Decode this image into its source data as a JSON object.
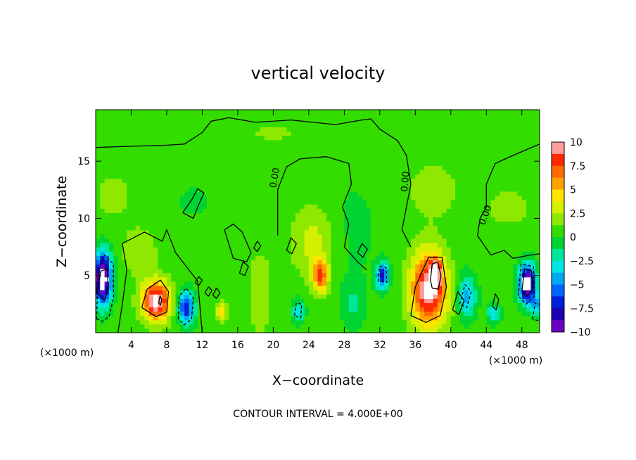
{
  "chart_data": {
    "type": "heatmap",
    "title": "vertical velocity",
    "xlabel": "X−coordinate",
    "ylabel": "Z−coordinate",
    "x_units_left": "(×1000 m)",
    "x_units_right": "(×1000 m)",
    "footer": "CONTOUR INTERVAL = 4.000E+00",
    "xlim": [
      0,
      50
    ],
    "ylim": [
      0,
      19.5
    ],
    "x_ticks": [
      4,
      8,
      12,
      16,
      20,
      24,
      28,
      32,
      36,
      40,
      44,
      48
    ],
    "x_tick_labels": [
      "4",
      "8",
      "12",
      "16",
      "20",
      "24",
      "28",
      "32",
      "36",
      "40",
      "44",
      "48"
    ],
    "y_ticks": [
      5,
      10,
      15
    ],
    "y_tick_labels": [
      "5",
      "10",
      "15"
    ],
    "contour_labels": [
      {
        "text": "0.00",
        "x": 20.5,
        "z": 13.5,
        "angle": -80
      },
      {
        "text": "0.00",
        "x": 35.2,
        "z": 13.2,
        "angle": -85
      },
      {
        "text": "0.00",
        "x": 44.2,
        "z": 10.2,
        "angle": -70
      }
    ],
    "colorbar": {
      "range": [
        -10,
        10
      ],
      "tick_labels": [
        "10",
        "7.5",
        "5",
        "2.5",
        "0",
        "−2.5",
        "−5",
        "−7.5",
        "−10"
      ],
      "tick_values": [
        10,
        7.5,
        5,
        2.5,
        0,
        -2.5,
        -5,
        -7.5,
        -10
      ],
      "colors": [
        "#ff9c9c",
        "#ff2a00",
        "#ff6a00",
        "#ffa200",
        "#ffe400",
        "#d4f000",
        "#8ee800",
        "#33dd00",
        "#00d433",
        "#00e69c",
        "#00e6e6",
        "#00a9f0",
        "#0064ff",
        "#0020d8",
        "#2000b0",
        "#6a00c0"
      ]
    },
    "background_value": 0.5,
    "features": [
      {
        "x": 0.8,
        "z": 4.8,
        "sx": 1.0,
        "sz": 2.2,
        "value": -13
      },
      {
        "x": 6.8,
        "z": 2.8,
        "sx": 1.6,
        "sz": 1.7,
        "value": 10
      },
      {
        "x": 10.2,
        "z": 2.2,
        "sx": 0.9,
        "sz": 1.4,
        "value": -8
      },
      {
        "x": 14.2,
        "z": 1.8,
        "sx": 0.6,
        "sz": 0.8,
        "value": 4
      },
      {
        "x": 18.5,
        "z": 3.5,
        "sx": 1.2,
        "sz": 3.5,
        "value": 2
      },
      {
        "x": 22.8,
        "z": 1.9,
        "sx": 0.7,
        "sz": 1.0,
        "value": -4
      },
      {
        "x": 25.3,
        "z": 5.0,
        "sx": 0.9,
        "sz": 1.4,
        "value": 7
      },
      {
        "x": 24.5,
        "z": 8.0,
        "sx": 2.5,
        "sz": 3.0,
        "value": 2.5
      },
      {
        "x": 29.0,
        "z": 2.5,
        "sx": 1.3,
        "sz": 2.0,
        "value": -2
      },
      {
        "x": 32.3,
        "z": 5.0,
        "sx": 0.7,
        "sz": 1.1,
        "value": -8
      },
      {
        "x": 37.5,
        "z": 3.8,
        "sx": 2.0,
        "sz": 3.2,
        "value": 10
      },
      {
        "x": 38.3,
        "z": 5.2,
        "sx": 0.6,
        "sz": 1.3,
        "value": 6
      },
      {
        "x": 41.8,
        "z": 3.2,
        "sx": 1.0,
        "sz": 1.8,
        "value": -5
      },
      {
        "x": 44.8,
        "z": 1.7,
        "sx": 0.7,
        "sz": 0.8,
        "value": -4
      },
      {
        "x": 48.6,
        "z": 4.3,
        "sx": 0.9,
        "sz": 1.6,
        "value": -13
      },
      {
        "x": 49.6,
        "z": 2.5,
        "sx": 0.5,
        "sz": 0.9,
        "value": -5
      },
      {
        "x": 5.0,
        "z": 7.0,
        "sx": 1.8,
        "sz": 2.0,
        "value": 2
      },
      {
        "x": 11.0,
        "z": 11.5,
        "sx": 1.5,
        "sz": 1.2,
        "value": -1.2
      },
      {
        "x": 29.0,
        "z": 9.0,
        "sx": 3.0,
        "sz": 5.0,
        "value": -0.8
      },
      {
        "x": 38.0,
        "z": 12.5,
        "sx": 3.0,
        "sz": 2.5,
        "value": 1.5
      },
      {
        "x": 46.5,
        "z": 11.0,
        "sx": 3.0,
        "sz": 2.0,
        "value": 1.2
      },
      {
        "x": 2.0,
        "z": 12.0,
        "sx": 3.0,
        "sz": 3.0,
        "value": 1.0
      },
      {
        "x": 20.0,
        "z": 17.5,
        "sx": 8.0,
        "sz": 2.0,
        "value": 0.8
      }
    ],
    "contours": [
      {
        "style": "solid",
        "points": [
          [
            0,
            16.2
          ],
          [
            4,
            16.3
          ],
          [
            8,
            16.4
          ],
          [
            10,
            16.5
          ],
          [
            12,
            17.5
          ],
          [
            13,
            18.5
          ],
          [
            15,
            18.8
          ],
          [
            18,
            18.4
          ],
          [
            22,
            18.6
          ],
          [
            27,
            18.2
          ],
          [
            30,
            18.6
          ],
          [
            31,
            18.7
          ],
          [
            32,
            17.8
          ],
          [
            34,
            16.8
          ],
          [
            35,
            15.5
          ],
          [
            35.5,
            13.0
          ],
          [
            35.0,
            11.0
          ],
          [
            34.5,
            9.0
          ],
          [
            35.5,
            7.5
          ]
        ]
      },
      {
        "style": "solid",
        "points": [
          [
            50,
            16.5
          ],
          [
            47,
            15.5
          ],
          [
            45,
            14.8
          ],
          [
            44,
            13.0
          ],
          [
            44,
            11.0
          ],
          [
            43.3,
            10.0
          ],
          [
            43,
            8.5
          ],
          [
            44.5,
            6.8
          ],
          [
            46,
            7.2
          ],
          [
            47,
            6.5
          ],
          [
            49,
            6.8
          ],
          [
            50,
            6.9
          ]
        ]
      },
      {
        "style": "solid",
        "points": [
          [
            20.5,
            8.5
          ],
          [
            20.5,
            12.5
          ],
          [
            21.5,
            14.5
          ],
          [
            23,
            15.2
          ],
          [
            26,
            15.4
          ],
          [
            28.5,
            14.8
          ],
          [
            28.8,
            13.0
          ],
          [
            27.8,
            11.0
          ],
          [
            28.5,
            9.5
          ],
          [
            28.0,
            7.5
          ],
          [
            29.5,
            6.2
          ],
          [
            30.5,
            5.5
          ]
        ]
      },
      {
        "style": "solid",
        "points": [
          [
            2.5,
            0
          ],
          [
            3.0,
            2.5
          ],
          [
            3.5,
            5.5
          ],
          [
            3.0,
            7.8
          ],
          [
            5.5,
            8.8
          ],
          [
            7.5,
            8.0
          ],
          [
            8.0,
            9.0
          ],
          [
            9.0,
            7.0
          ],
          [
            10.5,
            5.5
          ],
          [
            11.5,
            4.5
          ],
          [
            12.0,
            0
          ]
        ]
      },
      {
        "style": "solid",
        "points": [
          [
            9.8,
            10.5
          ],
          [
            10.8,
            11.6
          ],
          [
            11.5,
            12.6
          ],
          [
            12.2,
            12.2
          ],
          [
            11.6,
            11.2
          ],
          [
            11.0,
            10.0
          ],
          [
            9.8,
            10.5
          ]
        ]
      },
      {
        "style": "solid",
        "points": [
          [
            14.5,
            9.0
          ],
          [
            15.5,
            9.5
          ],
          [
            16.5,
            8.8
          ],
          [
            17.5,
            7.0
          ],
          [
            17.0,
            6.2
          ],
          [
            15.5,
            6.5
          ],
          [
            14.5,
            9.0
          ]
        ]
      },
      {
        "style": "solid",
        "points": [
          [
            5.2,
            2.2
          ],
          [
            5.8,
            3.8
          ],
          [
            7.3,
            4.6
          ],
          [
            8.2,
            3.6
          ],
          [
            8.0,
            1.8
          ],
          [
            6.8,
            1.4
          ],
          [
            5.2,
            2.2
          ]
        ]
      },
      {
        "style": "solid",
        "points": [
          [
            35.5,
            1.5
          ],
          [
            36.0,
            4.0
          ],
          [
            37.5,
            6.6
          ],
          [
            39.0,
            6.6
          ],
          [
            39.5,
            4.0
          ],
          [
            38.8,
            1.5
          ],
          [
            37.2,
            0.9
          ],
          [
            35.5,
            1.5
          ]
        ]
      },
      {
        "style": "solid",
        "points": [
          [
            37.7,
            4.6
          ],
          [
            37.9,
            6.0
          ],
          [
            38.5,
            6.2
          ],
          [
            38.9,
            5.0
          ],
          [
            38.6,
            3.8
          ],
          [
            37.9,
            3.9
          ],
          [
            37.7,
            4.6
          ]
        ]
      },
      {
        "style": "solid",
        "points": [
          [
            7.1,
            2.6
          ],
          [
            7.25,
            3.2
          ],
          [
            7.45,
            2.9
          ],
          [
            7.3,
            2.4
          ],
          [
            7.1,
            2.6
          ]
        ]
      },
      {
        "style": "solid",
        "points": [
          [
            0.1,
            3.5
          ],
          [
            0.6,
            5.4
          ],
          [
            1.3,
            5.6
          ],
          [
            1.4,
            4.0
          ],
          [
            1.0,
            2.8
          ],
          [
            0.1,
            3.5
          ]
        ]
      },
      {
        "style": "solid",
        "points": [
          [
            48.0,
            3.6
          ],
          [
            48.3,
            5.6
          ],
          [
            49.1,
            5.4
          ],
          [
            49.2,
            3.8
          ],
          [
            48.6,
            3.2
          ],
          [
            48.0,
            3.6
          ]
        ]
      },
      {
        "style": "solid",
        "points": [
          [
            16.2,
            5.2
          ],
          [
            16.6,
            6.2
          ],
          [
            17.2,
            5.8
          ],
          [
            16.8,
            5.0
          ],
          [
            16.2,
            5.2
          ]
        ]
      },
      {
        "style": "solid",
        "points": [
          [
            21.5,
            7.2
          ],
          [
            22.0,
            8.3
          ],
          [
            22.6,
            7.8
          ],
          [
            22.1,
            6.9
          ],
          [
            21.5,
            7.2
          ]
        ]
      },
      {
        "style": "solid",
        "points": [
          [
            29.5,
            7.0
          ],
          [
            30.0,
            7.8
          ],
          [
            30.6,
            7.3
          ],
          [
            30.1,
            6.6
          ],
          [
            29.5,
            7.0
          ]
        ]
      },
      {
        "style": "solid",
        "points": [
          [
            11.2,
            4.4
          ],
          [
            11.6,
            4.9
          ],
          [
            12.0,
            4.6
          ],
          [
            11.6,
            4.1
          ],
          [
            11.2,
            4.4
          ]
        ]
      },
      {
        "style": "solid",
        "points": [
          [
            12.3,
            3.5
          ],
          [
            12.7,
            4.0
          ],
          [
            13.1,
            3.7
          ],
          [
            12.7,
            3.2
          ],
          [
            12.3,
            3.5
          ]
        ]
      },
      {
        "style": "solid",
        "points": [
          [
            13.2,
            3.3
          ],
          [
            13.6,
            3.9
          ],
          [
            14.0,
            3.5
          ],
          [
            13.6,
            3.0
          ],
          [
            13.2,
            3.3
          ]
        ]
      },
      {
        "style": "solid",
        "points": [
          [
            17.8,
            7.4
          ],
          [
            18.2,
            8.0
          ],
          [
            18.6,
            7.6
          ],
          [
            18.2,
            7.1
          ],
          [
            17.8,
            7.4
          ]
        ]
      },
      {
        "style": "solid",
        "points": [
          [
            40.2,
            2.0
          ],
          [
            40.8,
            3.6
          ],
          [
            41.5,
            2.8
          ],
          [
            40.9,
            1.6
          ],
          [
            40.2,
            2.0
          ]
        ]
      },
      {
        "style": "solid",
        "points": [
          [
            44.7,
            2.3
          ],
          [
            45.0,
            3.4
          ],
          [
            45.4,
            2.9
          ],
          [
            45.1,
            2.0
          ],
          [
            44.7,
            2.3
          ]
        ]
      },
      {
        "style": "dashed",
        "points": [
          [
            0.1,
            1.2
          ],
          [
            0.3,
            5.5
          ],
          [
            1.0,
            6.8
          ],
          [
            2.0,
            6.0
          ],
          [
            2.0,
            3.0
          ],
          [
            1.5,
            1.4
          ],
          [
            0.8,
            1.0
          ],
          [
            0.1,
            1.2
          ]
        ]
      },
      {
        "style": "dashed",
        "points": [
          [
            9.3,
            1.2
          ],
          [
            9.4,
            3.2
          ],
          [
            10.2,
            3.9
          ],
          [
            11.0,
            3.0
          ],
          [
            10.8,
            1.2
          ],
          [
            10.0,
            0.7
          ],
          [
            9.3,
            1.2
          ]
        ]
      },
      {
        "style": "dashed",
        "points": [
          [
            22.4,
            1.5
          ],
          [
            22.6,
            2.6
          ],
          [
            23.2,
            2.5
          ],
          [
            23.1,
            1.3
          ],
          [
            22.4,
            1.5
          ]
        ]
      },
      {
        "style": "dashed",
        "points": [
          [
            31.8,
            4.5
          ],
          [
            32.0,
            5.8
          ],
          [
            32.7,
            5.7
          ],
          [
            32.8,
            4.4
          ],
          [
            31.8,
            4.5
          ]
        ]
      },
      {
        "style": "dashed",
        "points": [
          [
            41.0,
            2.5
          ],
          [
            41.6,
            4.2
          ],
          [
            42.3,
            3.6
          ],
          [
            41.8,
            2.2
          ],
          [
            41.0,
            2.5
          ]
        ]
      },
      {
        "style": "dashed",
        "points": [
          [
            47.6,
            3.2
          ],
          [
            47.9,
            6.0
          ],
          [
            49.3,
            5.8
          ],
          [
            49.4,
            3.2
          ],
          [
            48.5,
            2.5
          ],
          [
            47.6,
            3.2
          ]
        ]
      },
      {
        "style": "dashed",
        "points": [
          [
            49.2,
            1.2
          ],
          [
            49.5,
            2.6
          ],
          [
            50,
            2.5
          ],
          [
            50,
            1.0
          ],
          [
            49.2,
            1.2
          ]
        ]
      }
    ]
  }
}
